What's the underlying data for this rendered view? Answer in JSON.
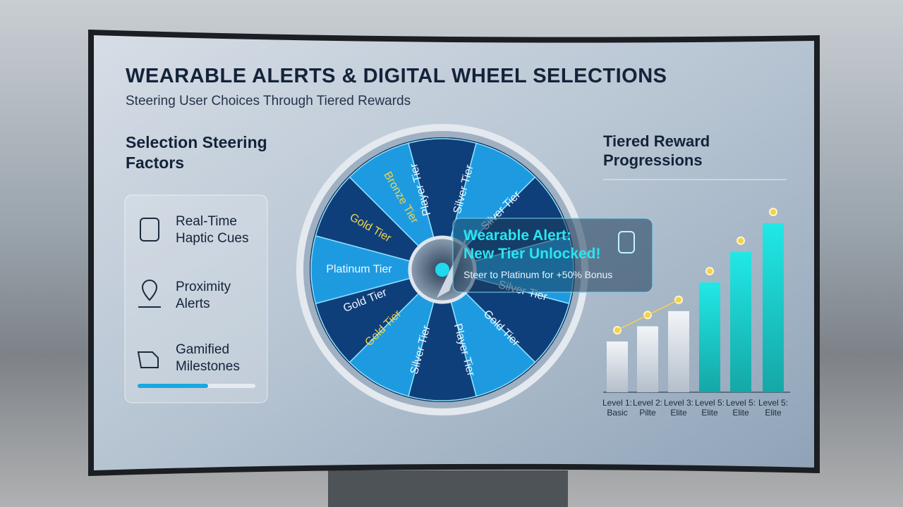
{
  "header": {
    "title": "WEARABLE ALERTS & DIGITAL WHEEL SELECTIONS",
    "subtitle": "Steering User Choices Through Tiered Rewards"
  },
  "left_panel": {
    "title": "Selection Steering Factors",
    "items": [
      {
        "label": "Real-Time Haptic Cues"
      },
      {
        "label": "Proximity Alerts"
      },
      {
        "label": "Gamified Milestones"
      }
    ]
  },
  "wheel": {
    "segments": [
      "Player Tier",
      "Silver Tier",
      "Silver Tier",
      "Silver Tier",
      "Gold Tier",
      "Player Tier",
      "Silver Tier",
      "Gold Tier",
      "Gold Tier",
      "Platinum Tier",
      "Gold Tier",
      "Bronze Tier"
    ]
  },
  "alert": {
    "title": "Wearable Alert: New Tier Unlocked!",
    "text": "Steer to Platinum for +50% Bonus"
  },
  "chart": {
    "type": "bar",
    "title": "Tiered Reward Progressions",
    "categories": [
      "Level 1: Basic",
      "Level 2: Pilte",
      "Level 3: Elite",
      "Level 5: Elite",
      "Level 5: Elite",
      "Level 5: Elite"
    ],
    "values": [
      30,
      39,
      48,
      65,
      83,
      100
    ]
  }
}
